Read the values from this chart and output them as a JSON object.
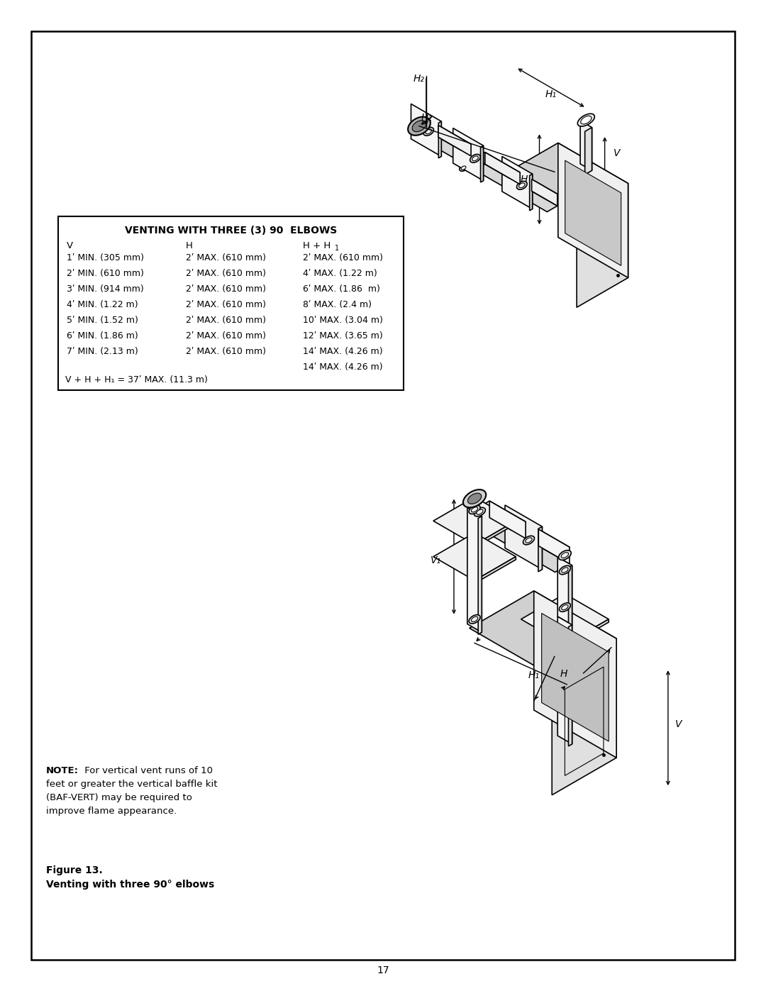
{
  "page_number": "17",
  "background_color": "#ffffff",
  "table_title": "VENTING WITH THREE (3) 90  ELBOWS",
  "table_headers_v": "V",
  "table_headers_h": "H",
  "table_headers_hh": "H + H",
  "table_rows": [
    [
      "1ʹ MIN. (305 mm)",
      "2ʹ MAX. (610 mm)",
      "2ʹ MAX. (610 mm)"
    ],
    [
      "2ʹ MIN. (610 mm)",
      "2ʹ MAX. (610 mm)",
      "4ʹ MAX. (1.22 m)"
    ],
    [
      "3ʹ MIN. (914 mm)",
      "2ʹ MAX. (610 mm)",
      "6ʹ MAX. (1.86  m)"
    ],
    [
      "4ʹ MIN. (1.22 m)",
      "2ʹ MAX. (610 mm)",
      "8ʹ MAX. (2.4 m)"
    ],
    [
      "5ʹ MIN. (1.52 m)",
      "2ʹ MAX. (610 mm)",
      "10ʹ MAX. (3.04 m)"
    ],
    [
      "6ʹ MIN. (1.86 m)",
      "2ʹ MAX. (610 mm)",
      "12ʹ MAX. (3.65 m)"
    ],
    [
      "7ʹ MIN. (2.13 m)",
      "2ʹ MAX. (610 mm)",
      "14ʹ MAX. (4.26 m)"
    ],
    [
      "",
      "",
      "14ʹ MAX. (4.26 m)"
    ]
  ],
  "table_footer": "V + H + H₁ = 37ʹ MAX. (11.3 m)",
  "note_bold": "NOTE:",
  "note_rest": " For vertical vent runs of 10",
  "note_line2": "feet or greater the vertical baffle kit",
  "note_line3": "(BAF-VERT) may be required to",
  "note_line4": "improve flame appearance.",
  "fig_line1": "Figure 13.",
  "fig_line2": "Venting with three 90° elbows"
}
